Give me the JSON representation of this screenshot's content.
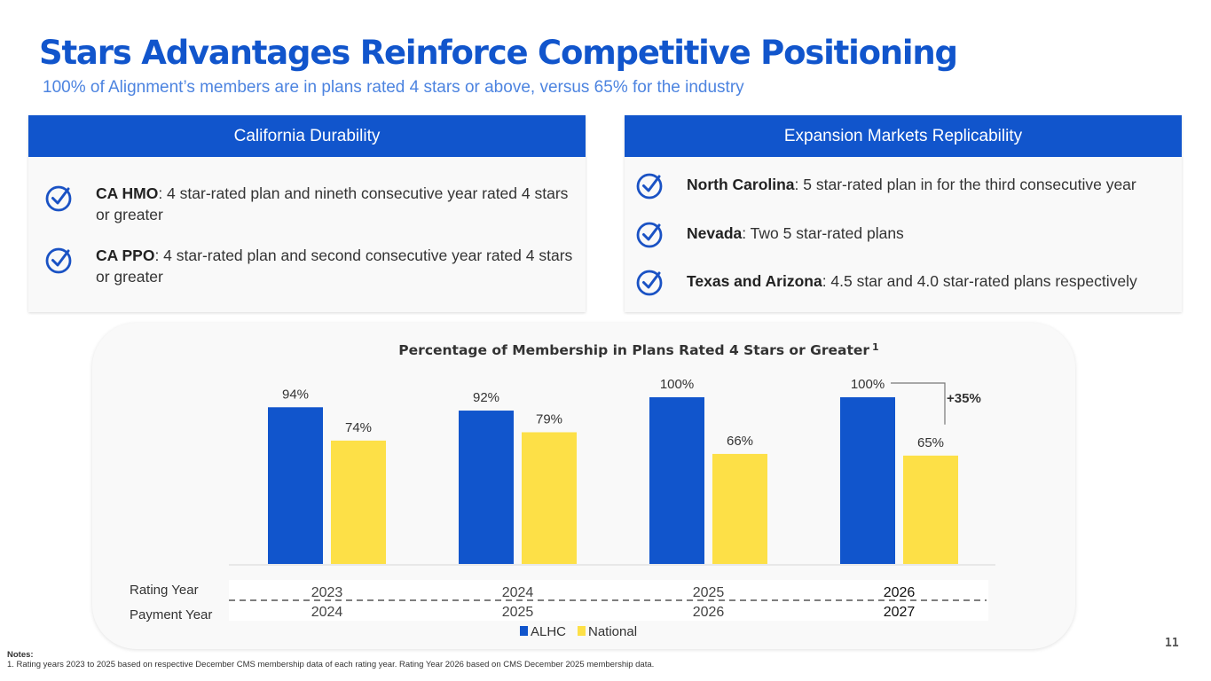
{
  "header": {
    "title": "Stars Advantages Reinforce Competitive Positioning",
    "subtitle": "100% of Alignment’s members are in plans rated 4 stars or above, versus 65% for the industry"
  },
  "panels": {
    "left": {
      "title": "California Durability",
      "items": [
        {
          "icon": "check-circle-icon",
          "label": "CA HMO",
          "text": ": 4 star-rated plan and nineth consecutive year rated 4 stars or greater"
        },
        {
          "icon": "check-circle-icon",
          "label": "CA PPO",
          "text": ": 4 star-rated plan and second consecutive year rated 4 stars or greater"
        }
      ]
    },
    "right": {
      "title": "Expansion Markets Replicability",
      "items": [
        {
          "icon": "check-circle-icon",
          "label": "North Carolina",
          "text": ": 5 star-rated plan in for the third consecutive year"
        },
        {
          "icon": "check-circle-icon",
          "label": "Nevada",
          "text": ": Two 5 star-rated plans"
        },
        {
          "icon": "check-circle-icon",
          "label": "Texas and Arizona",
          "text": ": 4.5 star and 4.0 star-rated plans respectively"
        }
      ]
    }
  },
  "chart_data": {
    "type": "bar",
    "title": "Percentage of Membership in Plans Rated 4 Stars or Greater",
    "title_superscript": "1",
    "categories": [
      "2023",
      "2024",
      "2025",
      "2026"
    ],
    "category_rows": [
      {
        "label": "Rating Year",
        "values": [
          "2023",
          "2024",
          "2025",
          "2026"
        ]
      },
      {
        "label": "Payment Year",
        "values": [
          "2024",
          "2025",
          "2026",
          "2027"
        ]
      }
    ],
    "series": [
      {
        "name": "ALHC",
        "color": "#1155cc",
        "values": [
          94,
          92,
          100,
          100
        ],
        "labels": [
          "94%",
          "92%",
          "100%",
          "100%"
        ]
      },
      {
        "name": "National",
        "color": "#fde047",
        "values": [
          74,
          79,
          66,
          65
        ],
        "labels": [
          "74%",
          "79%",
          "66%",
          "65%"
        ]
      }
    ],
    "annotation": {
      "text": "+35%",
      "category": "2026",
      "from_series": "ALHC",
      "to_series": "National"
    },
    "ylim": [
      0,
      100
    ],
    "xlabel": "",
    "ylabel": "",
    "grid": false,
    "legend": "bottom-center",
    "value_unit": "%"
  },
  "notes": {
    "heading": "Notes:",
    "items": [
      "1. Rating years 2023 to 2025 based on respective December CMS membership data of each rating year. Rating Year 2026 based on CMS December 2025 membership data."
    ]
  },
  "page_number": "11"
}
